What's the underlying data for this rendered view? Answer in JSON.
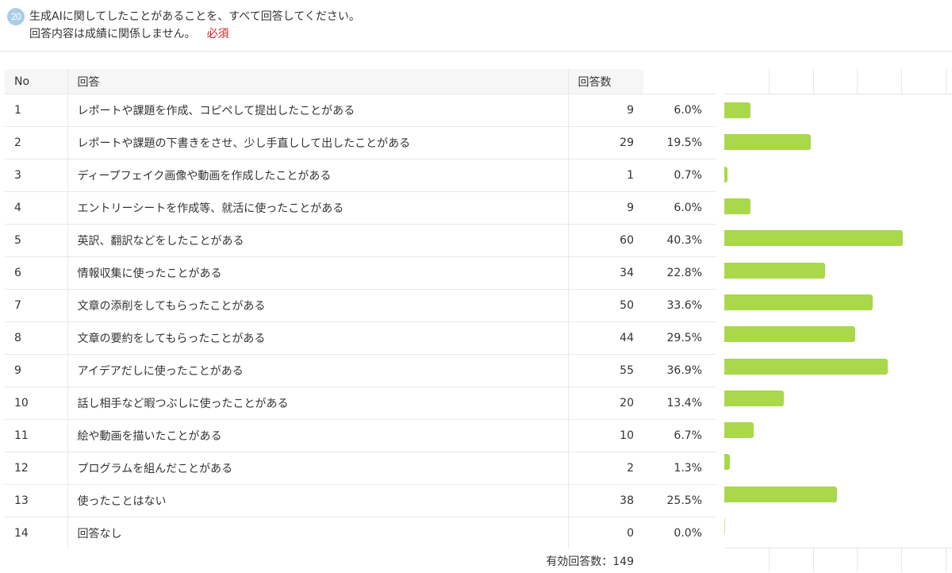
{
  "question": {
    "number": "20",
    "text": "生成AIに関してしたことがあることを、すべて回答してください。",
    "note": "回答内容は成績に関係しません。",
    "required": "必須"
  },
  "table": {
    "headers": {
      "no": "No",
      "label": "回答",
      "count": "回答数"
    },
    "rows": [
      {
        "no": "1",
        "label": "レポートや課題を作成、コピペして提出したことがある",
        "count": "9",
        "pct": "6.0%"
      },
      {
        "no": "2",
        "label": "レポートや課題の下書きをさせ、少し手直しして出したことがある",
        "count": "29",
        "pct": "19.5%"
      },
      {
        "no": "3",
        "label": "ディープフェイク画像や動画を作成したことがある",
        "count": "1",
        "pct": "0.7%"
      },
      {
        "no": "4",
        "label": "エントリーシートを作成等、就活に使ったことがある",
        "count": "9",
        "pct": "6.0%"
      },
      {
        "no": "5",
        "label": "英訳、翻訳などをしたことがある",
        "count": "60",
        "pct": "40.3%"
      },
      {
        "no": "6",
        "label": "情報収集に使ったことがある",
        "count": "34",
        "pct": "22.8%"
      },
      {
        "no": "7",
        "label": "文章の添削をしてもらったことがある",
        "count": "50",
        "pct": "33.6%"
      },
      {
        "no": "8",
        "label": "文章の要約をしてもらったことがある",
        "count": "44",
        "pct": "29.5%"
      },
      {
        "no": "9",
        "label": "アイデアだしに使ったことがある",
        "count": "55",
        "pct": "36.9%"
      },
      {
        "no": "10",
        "label": "話し相手など暇つぶしに使ったことがある",
        "count": "20",
        "pct": "13.4%"
      },
      {
        "no": "11",
        "label": "絵や動画を描いたことがある",
        "count": "10",
        "pct": "6.7%"
      },
      {
        "no": "12",
        "label": "プログラムを組んだことがある",
        "count": "2",
        "pct": "1.3%"
      },
      {
        "no": "13",
        "label": "使ったことはない",
        "count": "38",
        "pct": "25.5%"
      },
      {
        "no": "14",
        "label": "回答なし",
        "count": "0",
        "pct": "0.0%"
      }
    ],
    "total": "有効回答数：149"
  },
  "chart_data": {
    "type": "bar",
    "orientation": "horizontal",
    "categories": [
      "1",
      "2",
      "3",
      "4",
      "5",
      "6",
      "7",
      "8",
      "9",
      "10",
      "11",
      "12",
      "13",
      "14"
    ],
    "values": [
      6.0,
      19.5,
      0.7,
      6.0,
      40.3,
      22.8,
      33.6,
      29.5,
      36.9,
      13.4,
      6.7,
      1.3,
      25.5,
      0.0
    ],
    "xlim": [
      0,
      50
    ],
    "grid": true
  },
  "colors": {
    "bar": "#a9d84b",
    "badge": "#a9cde6",
    "required": "#cc2222"
  }
}
